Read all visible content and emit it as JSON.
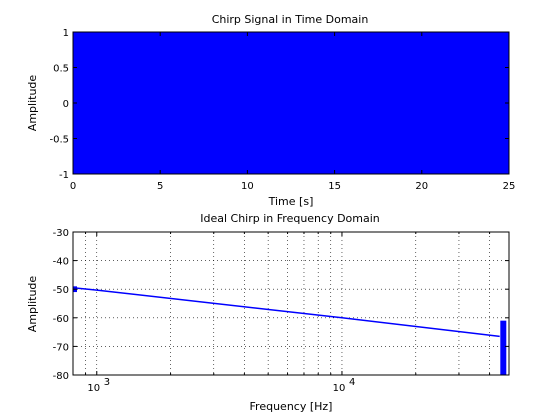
{
  "colors": {
    "series": "#0000ff",
    "axes": "#000000",
    "background": "#ffffff"
  },
  "chart_data": [
    {
      "type": "area",
      "title": "Chirp Signal in Time Domain",
      "xlabel": "Time [s]",
      "ylabel": "Amplitude",
      "xlim": [
        0,
        25
      ],
      "ylim": [
        -1,
        1
      ],
      "xticks": [
        0,
        5,
        10,
        15,
        20,
        25
      ],
      "xtick_labels": [
        "0",
        "5",
        "10",
        "15",
        "20",
        "25"
      ],
      "yticks": [
        -1,
        -0.5,
        0,
        0.5,
        1
      ],
      "ytick_labels": [
        "-1",
        "-0.5",
        "0",
        "0.5",
        "1"
      ],
      "grid": false,
      "series": [
        {
          "x": [
            0,
            25
          ],
          "y_min": [
            -1,
            -1
          ],
          "y_max": [
            1,
            1
          ]
        }
      ]
    },
    {
      "type": "line",
      "title": "Ideal Chirp in Frequency Domain",
      "xlabel": "Frequency [Hz]",
      "ylabel": "Amplitude",
      "xscale": "log",
      "xlim": [
        800,
        48000
      ],
      "ylim": [
        -80,
        -30
      ],
      "xticks": [
        1000,
        10000
      ],
      "xtick_labels": [
        {
          "base": "10",
          "exp": "3"
        },
        {
          "base": "10",
          "exp": "4"
        }
      ],
      "yticks": [
        -80,
        -70,
        -60,
        -50,
        -40,
        -30
      ],
      "ytick_labels": [
        "-80",
        "-70",
        "-60",
        "-50",
        "-40",
        "-30"
      ],
      "grid": true,
      "series": [
        {
          "x": [
            800,
            1000,
            10000,
            44000
          ],
          "y": [
            -49.5,
            -50.3,
            -60,
            -66.5
          ]
        }
      ],
      "annotations": [
        {
          "kind": "spike",
          "x": 45500,
          "y_from": -80,
          "y_to": -61
        },
        {
          "kind": "edge_ripple",
          "x": 800,
          "y_from": -51,
          "y_to": -49
        }
      ]
    }
  ]
}
